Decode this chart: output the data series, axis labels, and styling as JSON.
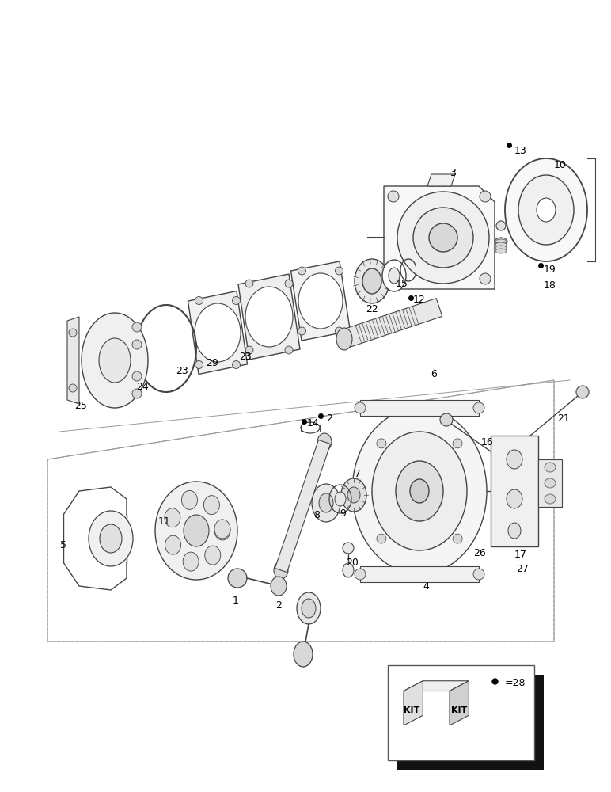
{
  "bg": "#ffffff",
  "fw": 7.72,
  "fh": 10.0,
  "dpi": 100,
  "gray": "#444444",
  "lgray": "#aaaaaa",
  "dgray": "#222222"
}
